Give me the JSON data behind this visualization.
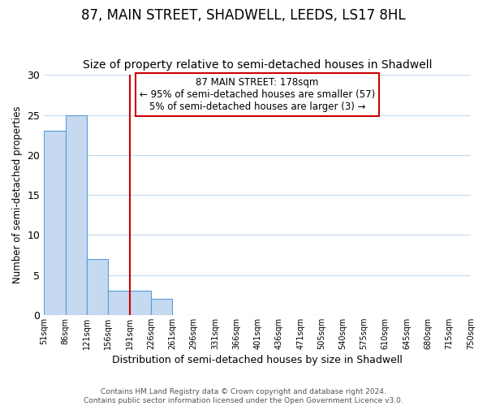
{
  "title": "87, MAIN STREET, SHADWELL, LEEDS, LS17 8HL",
  "subtitle": "Size of property relative to semi-detached houses in Shadwell",
  "xlabel": "Distribution of semi-detached houses by size in Shadwell",
  "ylabel": "Number of semi-detached properties",
  "bar_left_edges": [
    51,
    86,
    121,
    156,
    191,
    226,
    261,
    296,
    331,
    366,
    401,
    436,
    471,
    505,
    540,
    575,
    610,
    645,
    680,
    715
  ],
  "bar_widths": [
    35,
    35,
    35,
    35,
    35,
    35,
    35,
    35,
    35,
    35,
    35,
    35,
    34,
    35,
    35,
    35,
    35,
    35,
    35,
    35
  ],
  "bar_heights": [
    23,
    25,
    7,
    3,
    3,
    2,
    0,
    0,
    0,
    0,
    0,
    0,
    0,
    0,
    0,
    0,
    0,
    0,
    0,
    0
  ],
  "bar_color": "#c5d9f0",
  "bar_edgecolor": "#5b9bd5",
  "vline_x": 191,
  "vline_color": "#cc0000",
  "ylim": [
    0,
    30
  ],
  "yticks": [
    0,
    5,
    10,
    15,
    20,
    25,
    30
  ],
  "xlim_left": 51,
  "xlim_right": 750,
  "xtick_positions": [
    51,
    86,
    121,
    156,
    191,
    226,
    261,
    296,
    331,
    366,
    401,
    436,
    471,
    505,
    540,
    575,
    610,
    645,
    680,
    715,
    750
  ],
  "xtick_labels": [
    "51sqm",
    "86sqm",
    "121sqm",
    "156sqm",
    "191sqm",
    "226sqm",
    "261sqm",
    "296sqm",
    "331sqm",
    "366sqm",
    "401sqm",
    "436sqm",
    "471sqm",
    "505sqm",
    "540sqm",
    "575sqm",
    "610sqm",
    "645sqm",
    "680sqm",
    "715sqm",
    "750sqm"
  ],
  "annotation_title": "87 MAIN STREET: 178sqm",
  "annotation_line1": "← 95% of semi-detached houses are smaller (57)",
  "annotation_line2": "5% of semi-detached houses are larger (3) →",
  "annotation_box_color": "#cc0000",
  "ann_x_data": 51,
  "ann_y_top_data": 29.85,
  "ann_y_bottom_data": 25.2,
  "footer_line1": "Contains HM Land Registry data © Crown copyright and database right 2024.",
  "footer_line2": "Contains public sector information licensed under the Open Government Licence v3.0.",
  "background_color": "#ffffff",
  "grid_color": "#c5d9f0",
  "title_fontsize": 12,
  "subtitle_fontsize": 10,
  "xlabel_fontsize": 9,
  "ylabel_fontsize": 8.5
}
